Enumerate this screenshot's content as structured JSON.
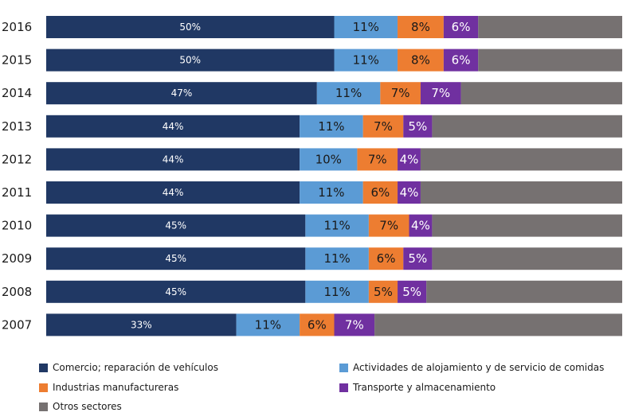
{
  "chart_data": {
    "type": "bar",
    "orientation": "horizontal",
    "stacked": true,
    "normalized_percent": true,
    "title": "",
    "xlabel": "",
    "ylabel": "",
    "xlim": [
      0,
      100
    ],
    "grid": false,
    "legend_position": "bottom",
    "categories": [
      "2016",
      "2015",
      "2014",
      "2013",
      "2012",
      "2011",
      "2010",
      "2009",
      "2008",
      "2007"
    ],
    "series": [
      {
        "name": "Comercio; reparación de vehículos",
        "color": "#203864",
        "values": [
          50,
          50,
          47,
          44,
          44,
          44,
          45,
          45,
          45,
          33
        ],
        "labels": [
          "50%",
          "50%",
          "47%",
          "44%",
          "44%",
          "44%",
          "45%",
          "45%",
          "45%",
          "33%"
        ]
      },
      {
        "name": "Actividades de alojamiento y de servicio de comidas",
        "color": "#5b9bd5",
        "values": [
          11,
          11,
          11,
          11,
          10,
          11,
          11,
          11,
          11,
          11
        ],
        "labels": [
          "11%",
          "11%",
          "11%",
          "11%",
          "10%",
          "11%",
          "11%",
          "11%",
          "11%",
          "11%"
        ]
      },
      {
        "name": "Industrias manufactureras",
        "color": "#ed7d31",
        "values": [
          8,
          8,
          7,
          7,
          7,
          6,
          7,
          6,
          5,
          6
        ],
        "labels": [
          "8%",
          "8%",
          "7%",
          "7%",
          "7%",
          "6%",
          "7%",
          "6%",
          "5%",
          "6%"
        ]
      },
      {
        "name": "Transporte y almacenamiento",
        "color": "#7030a0",
        "values": [
          6,
          6,
          7,
          5,
          4,
          4,
          4,
          5,
          5,
          7
        ],
        "labels": [
          "6%",
          "6%",
          "7%",
          "5%",
          "4%",
          "4%",
          "4%",
          "5%",
          "5%",
          "7%"
        ]
      },
      {
        "name": "Otros sectores",
        "color": "#767171",
        "values": [
          25,
          25,
          28,
          33,
          35,
          35,
          33,
          33,
          34,
          43
        ],
        "labels": [
          "",
          "",
          "",
          "",
          "",
          "",
          "",
          "",
          "",
          ""
        ]
      }
    ]
  }
}
